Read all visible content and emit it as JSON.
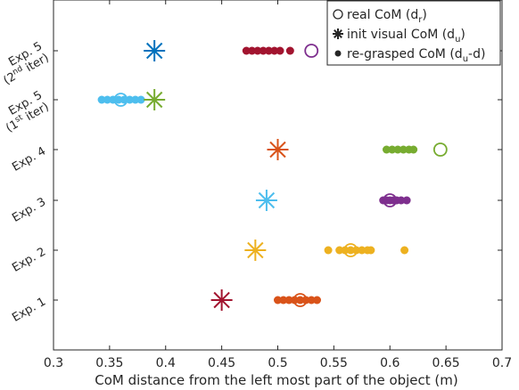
{
  "chart_data": {
    "type": "scatter",
    "xlabel": "CoM distance from the left most part of the object (m)",
    "xlim": [
      0.3,
      0.7
    ],
    "xticks": [
      0.3,
      0.35,
      0.4,
      0.45,
      0.5,
      0.55,
      0.6,
      0.65,
      0.7
    ],
    "xtick_labels": [
      "0.3",
      "0.35",
      "0.4",
      "0.45",
      "0.5",
      "0.55",
      "0.6",
      "0.65",
      "0.7"
    ],
    "grid": false,
    "legend_position": "top-right",
    "legend": {
      "real": {
        "text": "real CoM (d",
        "sub": "r",
        "close": ")"
      },
      "init": {
        "text": "init visual CoM (d",
        "sub": "u",
        "close": ")"
      },
      "regrasp": {
        "text": "re-grasped CoM (d",
        "sub": "u",
        "close": "-d)"
      }
    },
    "categories": [
      {
        "id": "exp1",
        "label": "Exp. 1",
        "color": "#d95319",
        "init_color": "#a2142f",
        "init": 0.45,
        "real": 0.52,
        "regrasped": [
          0.5,
          0.505,
          0.51,
          0.515,
          0.52,
          0.525,
          0.53,
          0.535
        ]
      },
      {
        "id": "exp2",
        "label": "Exp. 2",
        "color": "#edb120",
        "init_color": "#edb120",
        "init": 0.48,
        "real": 0.565,
        "regrasped": [
          0.545,
          0.555,
          0.56,
          0.565,
          0.57,
          0.575,
          0.58,
          0.583,
          0.613
        ]
      },
      {
        "id": "exp3",
        "label": "Exp. 3",
        "color": "#7e2f8e",
        "init_color": "#4dbeee",
        "init": 0.49,
        "real": 0.6,
        "regrasped": [
          0.594,
          0.597,
          0.6,
          0.603,
          0.606,
          0.61,
          0.615
        ]
      },
      {
        "id": "exp4",
        "label": "Exp. 4",
        "color": "#77ac30",
        "init_color": "#d95319",
        "init": 0.5,
        "real": 0.645,
        "regrasped": [
          0.597,
          0.602,
          0.607,
          0.612,
          0.617,
          0.621
        ]
      },
      {
        "id": "exp5a",
        "label": "Exp. 5",
        "label_line2": {
          "pre": "(1",
          "sup": "st",
          "post": " iter)"
        },
        "color": "#4dbeee",
        "init_color": "#77ac30",
        "init": 0.39,
        "real": 0.36,
        "regrasped": [
          0.343,
          0.348,
          0.353,
          0.358,
          0.363,
          0.368,
          0.373,
          0.378
        ]
      },
      {
        "id": "exp5b",
        "label": "Exp. 5",
        "label_line2": {
          "pre": "(2",
          "sup": "nd",
          "post": " iter)"
        },
        "color": "#a2142f",
        "init_color": "#0072bd",
        "real_color": "#7e2f8e",
        "init": 0.39,
        "real": 0.53,
        "regrasped": [
          0.472,
          0.477,
          0.482,
          0.487,
          0.492,
          0.497,
          0.502,
          0.511
        ]
      }
    ]
  }
}
